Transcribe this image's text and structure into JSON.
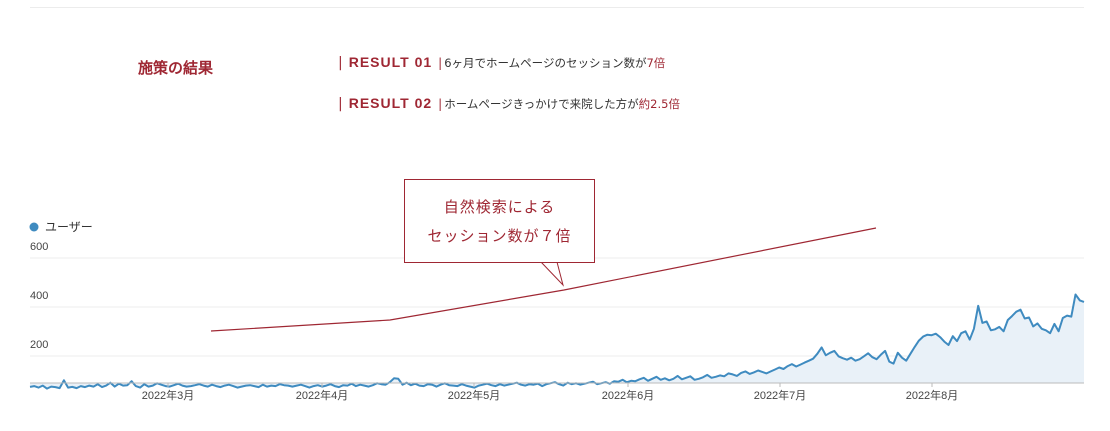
{
  "section": {
    "title": "施策の結果"
  },
  "results": [
    {
      "label": "RESULT 01",
      "text": "6ヶ月でホームページのセッション数が",
      "emphasis": "7倍"
    },
    {
      "label": "RESULT 02",
      "text": "ホームページきっかけで来院した方が",
      "emphasis": "約2.5倍"
    }
  ],
  "callout": {
    "line1": "自然検索による",
    "line2": "セッション数が７倍"
  },
  "colors": {
    "accent": "#9f2733",
    "series": "#3f8bc0",
    "fill": "#e9f1f8"
  },
  "chart_data": {
    "type": "area",
    "legend": [
      {
        "name": "ユーザー",
        "color": "#3f8bc0"
      }
    ],
    "series": [
      {
        "name": "ユーザー",
        "values": [
          25,
          28,
          22,
          30,
          18,
          26,
          24,
          20,
          52,
          22,
          25,
          20,
          28,
          24,
          30,
          26,
          36,
          24,
          30,
          42,
          26,
          38,
          30,
          32,
          48,
          28,
          22,
          36,
          26,
          30,
          40,
          34,
          28,
          26,
          32,
          38,
          30,
          26,
          28,
          32,
          36,
          30,
          26,
          34,
          28,
          24,
          30,
          34,
          28,
          22,
          26,
          30,
          32,
          28,
          24,
          34,
          26,
          30,
          28,
          36,
          32,
          30,
          26,
          30,
          34,
          28,
          22,
          28,
          32,
          26,
          30,
          36,
          28,
          24,
          32,
          30,
          38,
          28,
          34,
          30,
          26,
          32,
          40,
          36,
          34,
          44,
          60,
          58,
          34,
          42,
          32,
          38,
          30,
          28,
          36,
          34,
          26,
          34,
          40,
          32,
          30,
          28,
          36,
          30,
          26,
          22,
          30,
          34,
          38,
          32,
          28,
          36,
          30,
          34,
          38,
          42,
          34,
          30,
          36,
          34,
          38,
          28,
          36,
          40,
          44,
          36,
          30,
          42,
          36,
          40,
          34,
          38,
          42,
          46,
          36,
          40,
          44,
          38,
          48,
          46,
          54,
          44,
          50,
          48,
          56,
          62,
          50,
          58,
          66,
          54,
          60,
          52,
          58,
          70,
          56,
          62,
          68,
          54,
          58,
          64,
          74,
          62,
          66,
          72,
          68,
          80,
          76,
          70,
          82,
          88,
          78,
          84,
          92,
          86,
          80,
          88,
          96,
          104,
          98,
          110,
          118,
          108,
          116,
          124,
          132,
          140,
          160,
          186,
          154,
          164,
          172,
          150,
          142,
          136,
          144,
          132,
          138,
          150,
          162,
          146,
          138,
          156,
          172,
          128,
          120,
          164,
          144,
          132,
          160,
          188,
          214,
          230,
          238,
          236,
          242,
          228,
          210,
          196,
          232,
          212,
          244,
          252,
          218,
          262,
          356,
          286,
          292,
          256,
          260,
          270,
          252,
          298,
          314,
          332,
          340,
          304,
          308,
          272,
          284,
          262,
          256,
          244,
          282,
          252,
          306,
          316,
          312,
          402,
          378,
          372
        ]
      }
    ],
    "x_ticks": [
      "2022年3月",
      "2022年4月",
      "2022年5月",
      "2022年6月",
      "2022年7月",
      "2022年8月"
    ],
    "y_ticks": [
      200,
      400,
      600
    ],
    "ylim": [
      0,
      640
    ],
    "grid": true,
    "legend_position": "top-left"
  }
}
